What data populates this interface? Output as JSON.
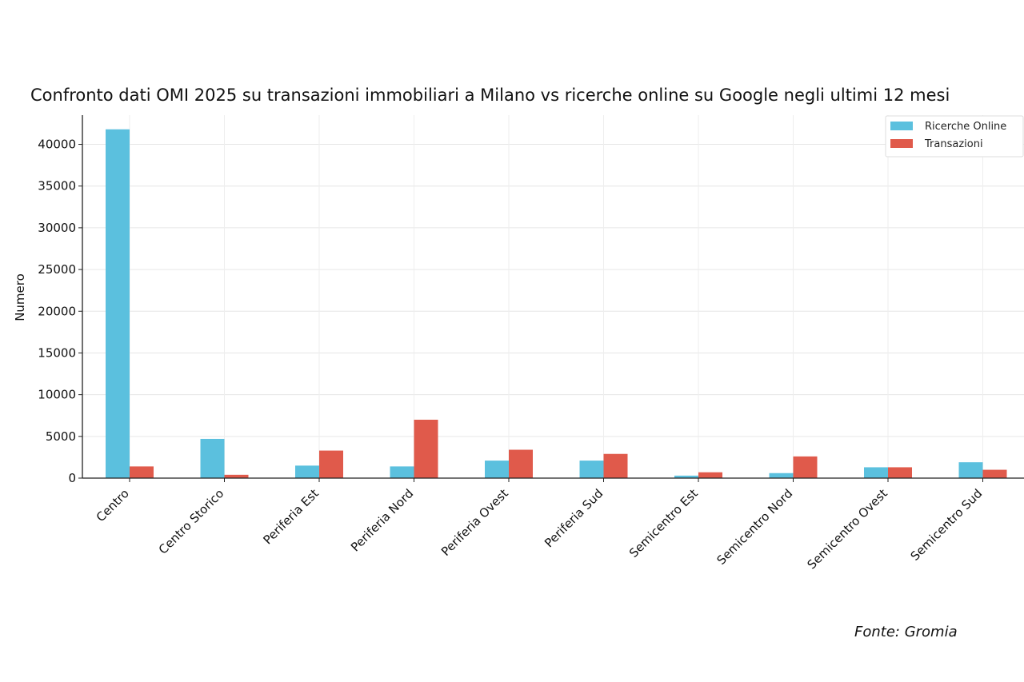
{
  "chart_data": {
    "type": "bar",
    "title": "Confronto dati OMI 2025 su transazioni immobiliari a Milano vs ricerche online su Google negli ultimi 12 mesi",
    "xlabel": "",
    "ylabel": "Numero",
    "ylim": [
      0,
      43500
    ],
    "yticks": [
      0,
      5000,
      10000,
      15000,
      20000,
      25000,
      30000,
      35000,
      40000
    ],
    "grid": true,
    "legend_position": "top-right",
    "categories": [
      "Centro",
      "Centro Storico",
      "Periferia Est",
      "Periferia Nord",
      "Periferia Ovest",
      "Periferia Sud",
      "Semicentro Est",
      "Semicentro Nord",
      "Semicentro Ovest",
      "Semicentro Sud"
    ],
    "series": [
      {
        "name": "Ricerche Online",
        "color": "#5bc0de",
        "values": [
          41800,
          4700,
          1500,
          1400,
          2100,
          2100,
          300,
          600,
          1300,
          1900
        ]
      },
      {
        "name": "Transazioni",
        "color": "#e05a4b",
        "values": [
          1400,
          400,
          3300,
          7000,
          3400,
          2900,
          700,
          2600,
          1300,
          1000
        ]
      }
    ]
  },
  "source": "Fonte: Gromia"
}
